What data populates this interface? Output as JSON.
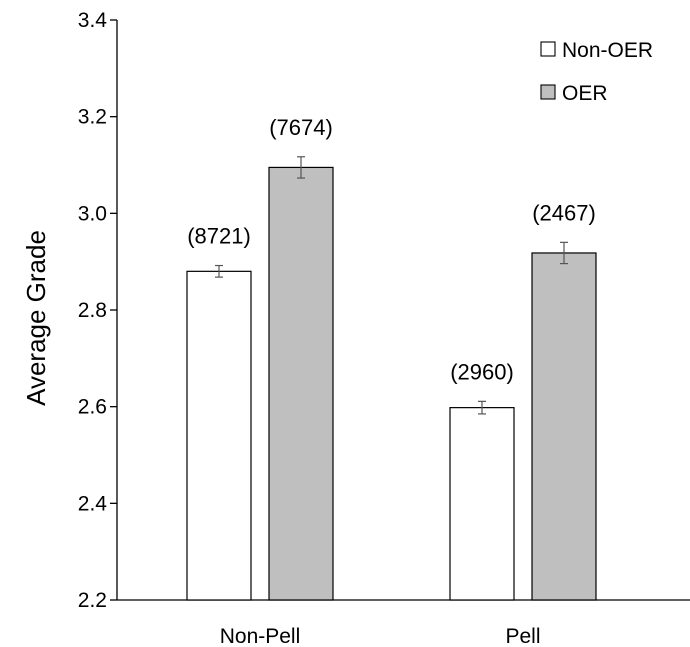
{
  "chart_data": {
    "type": "bar",
    "categories": [
      "Non-Pell",
      "Pell"
    ],
    "series": [
      {
        "name": "Non-OER",
        "color": "#ffffff",
        "values": [
          2.88,
          2.598
        ],
        "error": [
          0.012,
          0.013
        ],
        "labels": [
          "(8721)",
          "(2960)"
        ]
      },
      {
        "name": "OER",
        "color": "#bfbfbf",
        "values": [
          3.095,
          2.918
        ],
        "error": [
          0.022,
          0.022
        ],
        "labels": [
          "(7674)",
          "(2467)"
        ]
      }
    ],
    "ylabel": "Average Grade",
    "xlabel": "",
    "ylim": [
      2.2,
      3.4
    ],
    "yticks": [
      "2.2",
      "2.4",
      "2.6",
      "2.8",
      "3.0",
      "3.2",
      "3.4"
    ],
    "grid": false,
    "legend_position": "top-right"
  }
}
